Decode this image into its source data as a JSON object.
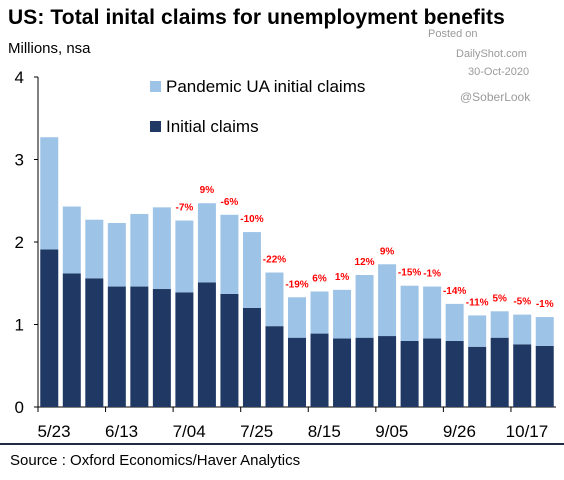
{
  "header": {
    "title": "US: Total inital claims for unemployment benefits",
    "subtitle": "Millions, nsa"
  },
  "watermark": {
    "line1": "Posted on",
    "line2": "DailyShot.com",
    "line3": "30-Oct-2020",
    "handle": "@SoberLook"
  },
  "footer": {
    "source": "Source : Oxford Economics/Haver Analytics"
  },
  "colors": {
    "initial": "#1f3864",
    "pandemic": "#9dc3e6",
    "annotation": "#ff0000",
    "axis": "#000000"
  },
  "chart_data": {
    "type": "bar",
    "stacked": true,
    "ylim": [
      0,
      4
    ],
    "yticks": [
      0,
      1,
      2,
      3,
      4
    ],
    "xtick_labels": [
      "5/23",
      "6/13",
      "7/04",
      "7/25",
      "8/15",
      "9/05",
      "9/26",
      "10/17"
    ],
    "xtick_every": 3,
    "legend_position": "top-center",
    "series": [
      {
        "name": "Initial claims",
        "values": [
          1.91,
          1.62,
          1.56,
          1.46,
          1.46,
          1.43,
          1.39,
          1.51,
          1.37,
          1.2,
          0.98,
          0.84,
          0.89,
          0.83,
          0.84,
          0.86,
          0.8,
          0.83,
          0.8,
          0.73,
          0.84,
          0.76,
          0.74
        ]
      },
      {
        "name": "Pandemic UA initial claims",
        "values": [
          1.36,
          0.81,
          0.71,
          0.77,
          0.88,
          0.99,
          0.87,
          0.96,
          0.96,
          0.92,
          0.65,
          0.49,
          0.51,
          0.59,
          0.76,
          0.87,
          0.67,
          0.63,
          0.45,
          0.38,
          0.32,
          0.36,
          0.35
        ]
      }
    ],
    "annotations": [
      {
        "index": 6,
        "label": "-7%"
      },
      {
        "index": 7,
        "label": "9%"
      },
      {
        "index": 8,
        "label": "-6%"
      },
      {
        "index": 9,
        "label": "-10%"
      },
      {
        "index": 10,
        "label": "-22%"
      },
      {
        "index": 11,
        "label": "-19%"
      },
      {
        "index": 12,
        "label": "6%"
      },
      {
        "index": 13,
        "label": "1%"
      },
      {
        "index": 14,
        "label": "12%"
      },
      {
        "index": 15,
        "label": "9%"
      },
      {
        "index": 16,
        "label": "-15%"
      },
      {
        "index": 17,
        "label": "-1%"
      },
      {
        "index": 18,
        "label": "-14%"
      },
      {
        "index": 19,
        "label": "-11%"
      },
      {
        "index": 20,
        "label": "5%"
      },
      {
        "index": 21,
        "label": "-5%"
      },
      {
        "index": 22,
        "label": "-1%"
      }
    ]
  }
}
